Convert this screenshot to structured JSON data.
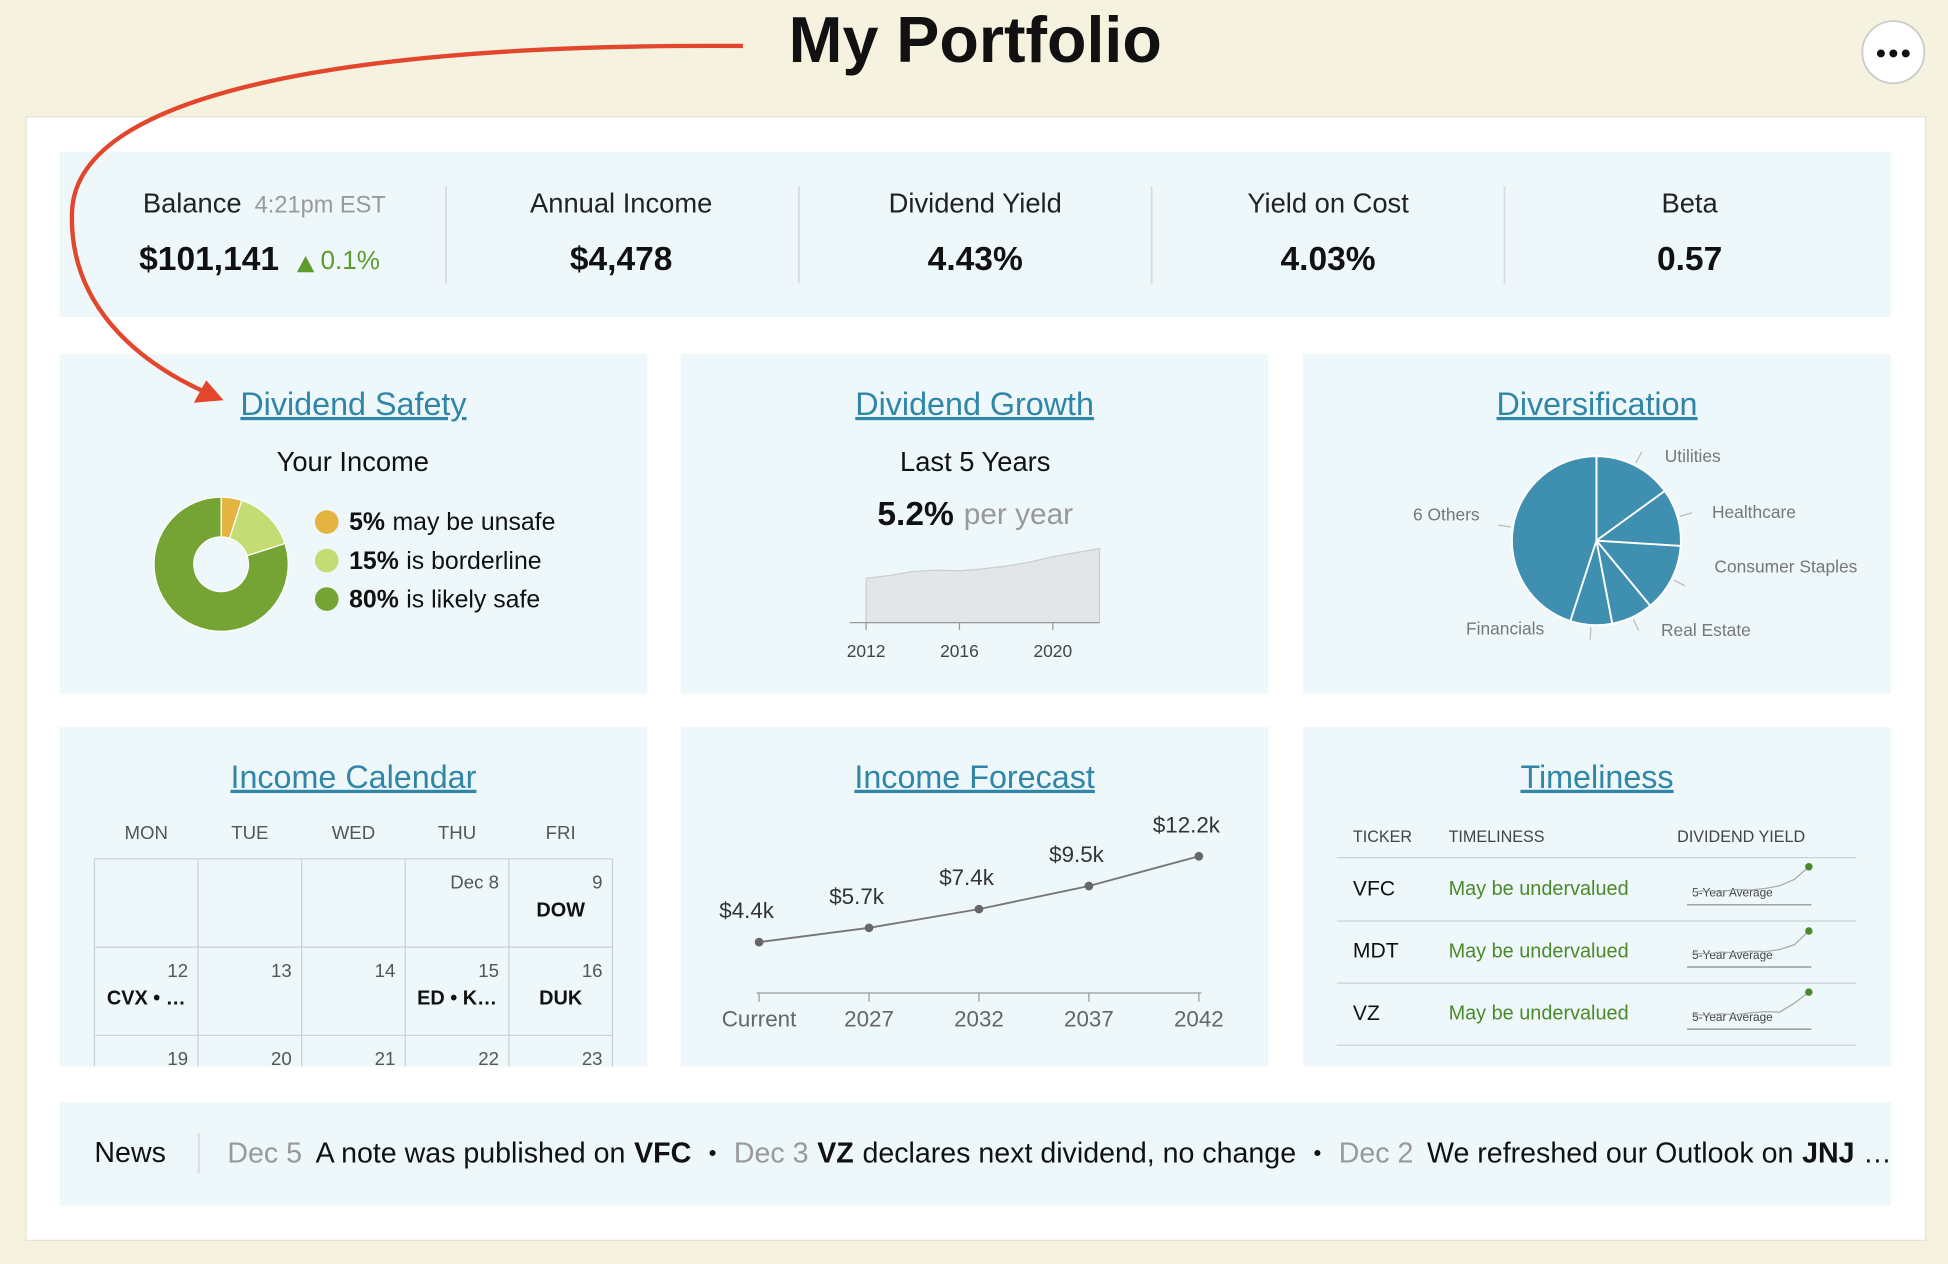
{
  "title": "My Portfolio",
  "stats": [
    {
      "label": "Balance",
      "time": "4:21pm EST",
      "value": "$101,141",
      "change": "0.1%"
    },
    {
      "label": "Annual Income",
      "value": "$4,478"
    },
    {
      "label": "Dividend Yield",
      "value": "4.43%"
    },
    {
      "label": "Yield on Cost",
      "value": "4.03%"
    },
    {
      "label": "Beta",
      "value": "0.57"
    }
  ],
  "dividend_safety": {
    "title": "Dividend Safety",
    "subtitle": "Your Income",
    "chart": {
      "type": "donut",
      "values": [
        5,
        15,
        80
      ],
      "value_labels": [
        "5%",
        "15%",
        "80%"
      ],
      "descriptions": [
        "may be unsafe",
        "is borderline",
        "is likely safe"
      ],
      "colors": [
        "#e3b43f",
        "#c3dd74",
        "#76a434"
      ]
    }
  },
  "dividend_growth": {
    "title": "Dividend Growth",
    "subtitle": "Last 5 Years",
    "rate": "5.2%",
    "rate_unit": "per year",
    "chart": {
      "type": "area",
      "x": [
        2012,
        2013,
        2014,
        2015,
        2016,
        2017,
        2018,
        2019,
        2020,
        2021,
        2022
      ],
      "values": [
        33,
        35,
        38,
        39,
        38.5,
        40,
        42,
        45,
        49,
        52,
        55
      ],
      "xlim": [
        2011.3,
        2022
      ],
      "xticks": [
        2012,
        2016,
        2020
      ],
      "ylim": [
        0,
        60
      ],
      "color": "#e3e6e9"
    }
  },
  "diversification": {
    "title": "Diversification",
    "chart": {
      "type": "pie",
      "categories": [
        "Utilities",
        "Healthcare",
        "Consumer Staples",
        "Real Estate",
        "Financials",
        "6 Others"
      ],
      "values": [
        15,
        11,
        13,
        8,
        8,
        45
      ],
      "color": "#3f8fb1"
    }
  },
  "income_calendar": {
    "title": "Income Calendar",
    "days": [
      "MON",
      "TUE",
      "WED",
      "THU",
      "FRI"
    ],
    "weeks": [
      [
        null,
        null,
        null,
        {
          "date": "Dec 8"
        },
        {
          "date": "9",
          "event": "DOW"
        }
      ],
      [
        {
          "date": "12",
          "event": "CVX • …"
        },
        {
          "date": "13"
        },
        {
          "date": "14"
        },
        {
          "date": "15",
          "event": "ED • K…"
        },
        {
          "date": "16",
          "event": "DUK"
        }
      ],
      [
        {
          "date": "19"
        },
        {
          "date": "20"
        },
        {
          "date": "21"
        },
        {
          "date": "22"
        },
        {
          "date": "23"
        }
      ]
    ]
  },
  "income_forecast": {
    "title": "Income Forecast",
    "chart": {
      "type": "line",
      "categories": [
        "Current",
        "2027",
        "2032",
        "2037",
        "2042"
      ],
      "values": [
        4.4,
        5.7,
        7.4,
        9.5,
        12.2
      ],
      "value_labels": [
        "$4.4k",
        "$5.7k",
        "$7.4k",
        "$9.5k",
        "$12.2k"
      ],
      "ylim": [
        0,
        14
      ],
      "color": "#777777"
    }
  },
  "timeliness": {
    "title": "Timeliness",
    "headers": [
      "TICKER",
      "TIMELINESS",
      "DIVIDEND YIELD"
    ],
    "average_label": "5-Year Average",
    "ylim": [
      0,
      8
    ],
    "rows": [
      {
        "ticker": "VFC",
        "timeliness": "May be undervalued",
        "yield_history": [
          2.4,
          2.7,
          2.5,
          2.9,
          2.8,
          3.1,
          3.6,
          4.8,
          7.2
        ]
      },
      {
        "ticker": "MDT",
        "timeliness": "May be undervalued",
        "yield_history": [
          2.6,
          2.5,
          2.8,
          2.7,
          3.0,
          2.9,
          3.3,
          4.2,
          6.8
        ]
      },
      {
        "ticker": "VZ",
        "timeliness": "May be undervalued",
        "yield_history": [
          2.8,
          2.6,
          2.9,
          2.7,
          3.1,
          3.3,
          3.2,
          4.9,
          7.0
        ]
      }
    ]
  },
  "news": {
    "label": "News",
    "separator": "•",
    "items": [
      {
        "date": "Dec 5",
        "before": "A note was published on",
        "ticker": "VFC"
      },
      {
        "date": "Dec 3",
        "ticker": "VZ",
        "after": "declares next dividend, no change"
      },
      {
        "date": "Dec 2",
        "before": "We refreshed our Outlook on",
        "ticker": "JNJ",
        "after": "…"
      }
    ]
  }
}
